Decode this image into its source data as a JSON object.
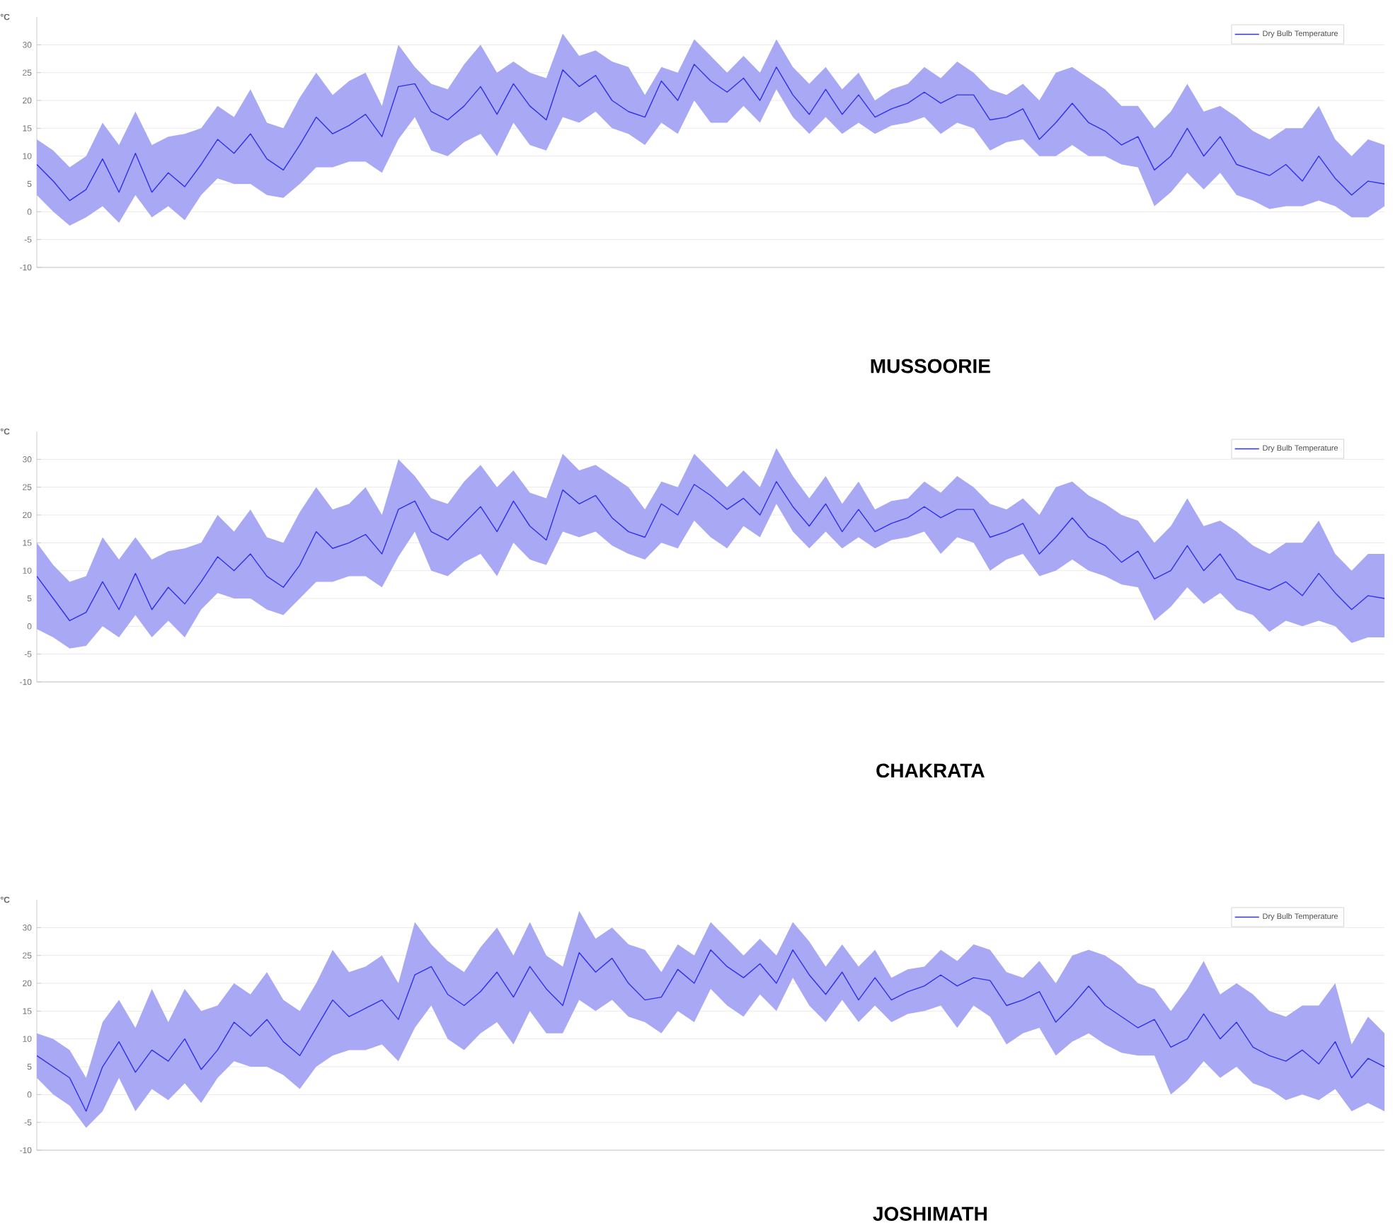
{
  "chart_data": [
    {
      "type": "line",
      "title": "MUSSOORIE",
      "ylabel": "°C",
      "categories": [
        null,
        null,
        null,
        null,
        null,
        null,
        null,
        null,
        null,
        null,
        null,
        null,
        null,
        null,
        null,
        null,
        null,
        null,
        null,
        null,
        null,
        null,
        null,
        null,
        null,
        null,
        null,
        null,
        null,
        null,
        null,
        null,
        null,
        null,
        null,
        null,
        null,
        null,
        null,
        null,
        null,
        null,
        null,
        null,
        null,
        null,
        null,
        null,
        null,
        null,
        null,
        null,
        null,
        null,
        null,
        null,
        null,
        null,
        null,
        null,
        null,
        null,
        null,
        null,
        null,
        null,
        null,
        null,
        null,
        null,
        null,
        null,
        null,
        null,
        null,
        null,
        null,
        null,
        null,
        null,
        null,
        null,
        null
      ],
      "series": [
        {
          "name": "Dry Bulb Temperature",
          "color": "#3030e8",
          "values": [
            8.5,
            5.5,
            2,
            4,
            9.5,
            3.5,
            10.5,
            3.5,
            7,
            4.5,
            8.5,
            13,
            10.5,
            14,
            9.5,
            7.5,
            12,
            17,
            14,
            15.5,
            17.5,
            13.5,
            22.5,
            23,
            18,
            16.5,
            19,
            22.5,
            17.5,
            23,
            19,
            16.5,
            25.5,
            22.5,
            24.5,
            20,
            18,
            17,
            23.5,
            20,
            26.5,
            23.5,
            21.5,
            24,
            20,
            26,
            21,
            17.5,
            22,
            17.5,
            21,
            17,
            18.5,
            19.5,
            21.5,
            19.5,
            21,
            21,
            16.5,
            17,
            18.5,
            13,
            16,
            19.5,
            16,
            14.5,
            12,
            13.5,
            7.5,
            10,
            15,
            10,
            13.5,
            8.5,
            7.5,
            6.5,
            8.5,
            5.5,
            10,
            6,
            3,
            5.5,
            5
          ],
          "upper": [
            13,
            11,
            8,
            10,
            16,
            12,
            18,
            12,
            13.5,
            14,
            15,
            19,
            17,
            22,
            16,
            15,
            20.5,
            25,
            21,
            23.5,
            25,
            19,
            30,
            26,
            23,
            22,
            26.5,
            30,
            25,
            27,
            25,
            24,
            32,
            28,
            29,
            27,
            26,
            21,
            26,
            25,
            31,
            28,
            25,
            28,
            25,
            31,
            26,
            23,
            26,
            22,
            25,
            20,
            22,
            23,
            26,
            24,
            27,
            25,
            22,
            21,
            23,
            20,
            25,
            26,
            24,
            22,
            19,
            19,
            15,
            18,
            23,
            18,
            19,
            17,
            14.5,
            13,
            15,
            15,
            19,
            13,
            10,
            13,
            12
          ],
          "lower": [
            3,
            0,
            -2.5,
            -1,
            1,
            -2,
            3,
            -1,
            1,
            -1.5,
            3,
            6,
            5,
            5,
            3,
            2.5,
            5,
            8,
            8,
            9,
            9,
            7,
            13,
            17,
            11,
            10,
            12.5,
            14,
            10,
            16,
            12,
            11,
            17,
            16,
            18,
            15,
            14,
            12,
            16,
            14,
            20,
            16,
            16,
            19,
            16,
            22,
            17,
            14,
            17,
            14,
            16,
            14,
            15.5,
            16,
            17,
            14,
            16,
            15,
            11,
            12.5,
            13,
            10,
            10,
            12,
            10,
            10,
            8.5,
            8,
            1,
            3.5,
            7,
            4,
            7,
            3,
            2,
            0.5,
            1,
            1,
            2,
            1,
            -1,
            -1,
            1
          ]
        }
      ],
      "ylim": [
        -10,
        35
      ],
      "yticks": [
        -10,
        -5,
        0,
        5,
        10,
        15,
        20,
        25,
        30
      ],
      "grid": "y",
      "legend": "top right"
    },
    {
      "type": "line",
      "title": "CHAKRATA",
      "ylabel": "°C",
      "categories": [
        null,
        null,
        null,
        null,
        null,
        null,
        null,
        null,
        null,
        null,
        null,
        null,
        null,
        null,
        null,
        null,
        null,
        null,
        null,
        null,
        null,
        null,
        null,
        null,
        null,
        null,
        null,
        null,
        null,
        null,
        null,
        null,
        null,
        null,
        null,
        null,
        null,
        null,
        null,
        null,
        null,
        null,
        null,
        null,
        null,
        null,
        null,
        null,
        null,
        null,
        null,
        null,
        null,
        null,
        null,
        null,
        null,
        null,
        null,
        null,
        null,
        null,
        null,
        null,
        null,
        null,
        null,
        null,
        null,
        null,
        null,
        null,
        null,
        null,
        null,
        null,
        null,
        null,
        null,
        null,
        null,
        null,
        null
      ],
      "series": [
        {
          "name": "Dry Bulb Temperature",
          "color": "#3030e8",
          "values": [
            9,
            5,
            1,
            2.5,
            8,
            3,
            9.5,
            3,
            7,
            4,
            8,
            12.5,
            10,
            13,
            9,
            7,
            11,
            17,
            14,
            15,
            16.5,
            13,
            21,
            22.5,
            17,
            15.5,
            18.5,
            21.5,
            17,
            22.5,
            18,
            15.5,
            24.5,
            22,
            23.5,
            19.5,
            17,
            16,
            22,
            20,
            25.5,
            23.5,
            21,
            23,
            20,
            26,
            21.5,
            18,
            22,
            17,
            21,
            17,
            18.5,
            19.5,
            21.5,
            19.5,
            21,
            21,
            16,
            17,
            18.5,
            13,
            16,
            19.5,
            16,
            14.5,
            11.5,
            13.5,
            8.5,
            10,
            14.5,
            10,
            13,
            8.5,
            7.5,
            6.5,
            8,
            5.5,
            9.5,
            6,
            3,
            5.5,
            5
          ],
          "upper": [
            15,
            11,
            8,
            9,
            16,
            12,
            16,
            12,
            13.5,
            14,
            15,
            20,
            17,
            21,
            16,
            15,
            20.5,
            25,
            21,
            22,
            25,
            20,
            30,
            27,
            23,
            22,
            26,
            29,
            25,
            28,
            24,
            23,
            31,
            28,
            29,
            27,
            25,
            21,
            26,
            25,
            31,
            28,
            25,
            28,
            25,
            32,
            27,
            23,
            27,
            22,
            26,
            21,
            22.5,
            23,
            26,
            24,
            27,
            25,
            22,
            21,
            23,
            20,
            25,
            26,
            23.5,
            22,
            20,
            19,
            15,
            18,
            23,
            18,
            19,
            17,
            14.5,
            13,
            15,
            15,
            19,
            13,
            10,
            13,
            13
          ],
          "lower": [
            -0.5,
            -2,
            -4,
            -3.5,
            0,
            -2,
            2,
            -2,
            1,
            -2,
            3,
            6,
            5,
            5,
            3,
            2,
            5,
            8,
            8,
            9,
            9,
            7,
            12.5,
            17,
            10,
            9,
            11.5,
            13,
            9,
            15,
            12,
            11,
            17,
            16,
            17,
            14.5,
            13,
            12,
            15,
            14,
            19,
            16,
            14,
            18,
            16,
            22,
            17,
            14,
            17,
            14,
            16,
            14,
            15.5,
            16,
            17,
            13,
            16,
            15,
            10,
            12,
            13,
            9,
            10,
            12,
            10,
            9,
            7.5,
            7,
            1,
            3.5,
            7,
            4,
            6,
            3,
            2,
            -1,
            1,
            0,
            1,
            0,
            -3,
            -2,
            -2
          ]
        }
      ],
      "ylim": [
        -10,
        35
      ],
      "yticks": [
        -10,
        -5,
        0,
        5,
        10,
        15,
        20,
        25,
        30
      ],
      "grid": "y",
      "legend": "top right"
    },
    {
      "type": "line",
      "title": "JOSHIMATH",
      "ylabel": "°C",
      "categories": [
        null,
        null,
        null,
        null,
        null,
        null,
        null,
        null,
        null,
        null,
        null,
        null,
        null,
        null,
        null,
        null,
        null,
        null,
        null,
        null,
        null,
        null,
        null,
        null,
        null,
        null,
        null,
        null,
        null,
        null,
        null,
        null,
        null,
        null,
        null,
        null,
        null,
        null,
        null,
        null,
        null,
        null,
        null,
        null,
        null,
        null,
        null,
        null,
        null,
        null,
        null,
        null,
        null,
        null,
        null,
        null,
        null,
        null,
        null,
        null,
        null,
        null,
        null,
        null,
        null,
        null,
        null,
        null,
        null,
        null,
        null,
        null,
        null,
        null,
        null,
        null,
        null,
        null,
        null,
        null,
        null,
        null,
        null
      ],
      "series": [
        {
          "name": "Dry Bulb Temperature",
          "color": "#3030e8",
          "values": [
            7,
            5,
            3,
            -3,
            5,
            9.5,
            4,
            8,
            6,
            10,
            4.5,
            8,
            13,
            10.5,
            13.5,
            9.5,
            7,
            12,
            17,
            14,
            15.5,
            17,
            13.5,
            21.5,
            23,
            18,
            16,
            18.5,
            22,
            17.5,
            23,
            19,
            16,
            25.5,
            22,
            24.5,
            20,
            17,
            17.5,
            22.5,
            20,
            26,
            23,
            21,
            23.5,
            20,
            26,
            21.5,
            18,
            22,
            17,
            21,
            17,
            18.5,
            19.5,
            21.5,
            19.5,
            21,
            20.5,
            16,
            17,
            18.5,
            13,
            16,
            19.5,
            16,
            14,
            12,
            13.5,
            8.5,
            10,
            14.5,
            10,
            13,
            8.5,
            7,
            6,
            8,
            5.5,
            9.5,
            3,
            6.5,
            5
          ],
          "upper": [
            11,
            10,
            8,
            3,
            13,
            17,
            12,
            19,
            13,
            19,
            15,
            16,
            20,
            18,
            22,
            17,
            15,
            20,
            26,
            22,
            23,
            25,
            20,
            31,
            27,
            24,
            22,
            26.5,
            30,
            25,
            31,
            25,
            23,
            33,
            28,
            30,
            27,
            26,
            22,
            27,
            25,
            31,
            28,
            25,
            28,
            25,
            31,
            27.5,
            23,
            27,
            23,
            26,
            21,
            22.5,
            23,
            26,
            24,
            27,
            26,
            22,
            21,
            24,
            20,
            25,
            26,
            25,
            23,
            20,
            19,
            15,
            19,
            24,
            18,
            20,
            18,
            15,
            14,
            16,
            16,
            20,
            9,
            14,
            11
          ],
          "lower": [
            3,
            0,
            -2,
            -6,
            -3,
            3,
            -3,
            1,
            -1,
            2,
            -1.5,
            3,
            6,
            5,
            5,
            3.5,
            1,
            5,
            7,
            8,
            8,
            9,
            6,
            12,
            16,
            10,
            8,
            11,
            13,
            9,
            15,
            11,
            11,
            17,
            15,
            17,
            14,
            13,
            11,
            15,
            13,
            19,
            16,
            14,
            18,
            15,
            21,
            16,
            13,
            17,
            13,
            16,
            13,
            14.5,
            15,
            16,
            12,
            16,
            14,
            9,
            11,
            12,
            7,
            9.5,
            11,
            9,
            7.5,
            7,
            7,
            0,
            2.5,
            6,
            3,
            5,
            2,
            1,
            -1,
            0,
            -1,
            1,
            -3,
            -1.5,
            -3
          ]
        }
      ],
      "ylim": [
        -10,
        35
      ],
      "yticks": [
        -10,
        -5,
        0,
        5,
        10,
        15,
        20,
        25,
        30
      ],
      "grid": "y",
      "legend": "top right"
    }
  ]
}
